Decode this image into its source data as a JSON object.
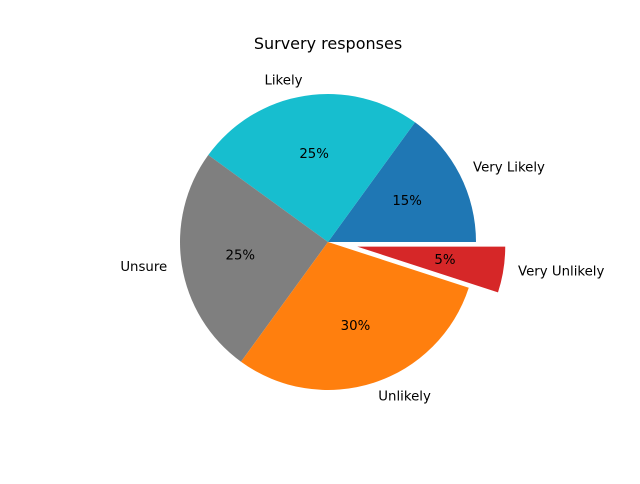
{
  "chart_data": {
    "type": "pie",
    "title": "Survery responses",
    "categories": [
      "Very Likely",
      "Likely",
      "Unsure",
      "Unlikely",
      "Very Unlikely"
    ],
    "values": [
      15,
      25,
      25,
      30,
      5
    ],
    "value_labels": [
      "15%",
      "25%",
      "25%",
      "30%",
      "5%"
    ],
    "colors": [
      "#1f77b4",
      "#17becf",
      "#7f7f7f",
      "#ff7f0e",
      "#d62728"
    ],
    "explode": [
      0,
      0,
      0,
      0,
      0.2
    ],
    "start_angle_deg": 0,
    "direction": "counterclockwise",
    "legend": "none"
  }
}
